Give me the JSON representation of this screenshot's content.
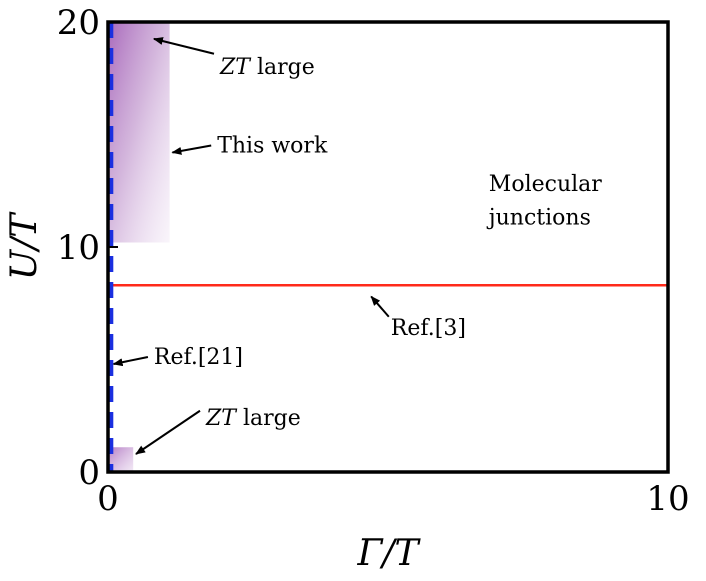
{
  "chart_data": {
    "type": "line",
    "xlabel": "Γ/T",
    "ylabel": "U/T",
    "xlim": [
      0,
      10
    ],
    "ylim": [
      0,
      20
    ],
    "x_ticks": [
      "0",
      "10"
    ],
    "y_ticks": [
      "0",
      "10",
      "20"
    ],
    "grid": false,
    "regions": [
      {
        "name": "This work",
        "x": [
          0,
          1.1
        ],
        "y": [
          10.2,
          20
        ],
        "color": "#b07ac0"
      },
      {
        "name": "ZT large (low U)",
        "x": [
          0,
          0.45
        ],
        "y": [
          0,
          1.1
        ],
        "color": "#b07ac0"
      }
    ],
    "lines": [
      {
        "name": "Ref.[3]",
        "orientation": "horizontal",
        "y": 8.3,
        "x_range": [
          0,
          10
        ],
        "color": "#ff2a1a"
      },
      {
        "name": "Ref.[21]",
        "orientation": "vertical",
        "x": 0.05,
        "y_range": [
          0,
          20
        ],
        "color": "#1a2fe0",
        "dashed": true
      }
    ],
    "annotations": [
      {
        "text_before": "",
        "italic": "ZT",
        "text_after": " large",
        "x": 2.0,
        "y": 17.7,
        "arrow_to": [
          0.82,
          19.25
        ]
      },
      {
        "text_before": "This work",
        "italic": "",
        "text_after": "",
        "x": 1.95,
        "y": 14.2,
        "arrow_to": [
          1.15,
          14.2
        ]
      },
      {
        "text_before": "Molecular",
        "italic": "",
        "text_after": "",
        "x": 6.8,
        "y": 12.5,
        "arrow_to": null
      },
      {
        "text_before": "junctions",
        "italic": "",
        "text_after": "",
        "x": 6.8,
        "y": 11.0,
        "arrow_to": null
      },
      {
        "text_before": "Ref.[3]",
        "italic": "",
        "text_after": "",
        "x": 5.05,
        "y": 6.1,
        "arrow_to": [
          4.7,
          7.8
        ]
      },
      {
        "text_before": "Ref.[21]",
        "italic": "",
        "text_after": "",
        "x": 0.82,
        "y": 4.8,
        "arrow_to": [
          0.1,
          4.8
        ]
      },
      {
        "text_before": "",
        "italic": "ZT",
        "text_after": " large",
        "x": 1.75,
        "y": 2.1,
        "arrow_to": [
          0.5,
          0.8
        ]
      }
    ]
  }
}
